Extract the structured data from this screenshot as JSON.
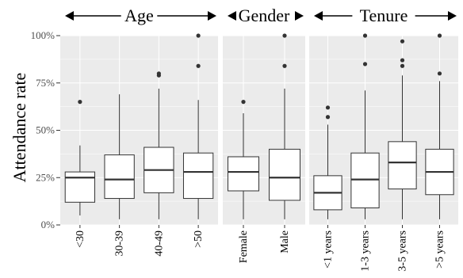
{
  "chart_data": {
    "type": "box",
    "title": "",
    "ylabel": "Attendance rate",
    "xlabel": "",
    "ylim": [
      0,
      1
    ],
    "yticks": [
      {
        "value": 0,
        "label": "0%"
      },
      {
        "value": 0.25,
        "label": "25%"
      },
      {
        "value": 0.5,
        "label": "50%"
      },
      {
        "value": 0.75,
        "label": "75%"
      },
      {
        "value": 1.0,
        "label": "100%"
      }
    ],
    "grid": true,
    "facets": [
      {
        "name": "Age",
        "categories": [
          {
            "label": "<30",
            "whisker_low": 0.05,
            "q1": 0.12,
            "median": 0.25,
            "q3": 0.28,
            "whisker_high": 0.42,
            "outliers": [
              0.65
            ]
          },
          {
            "label": "30-39",
            "whisker_low": 0.03,
            "q1": 0.14,
            "median": 0.24,
            "q3": 0.37,
            "whisker_high": 0.69,
            "outliers": []
          },
          {
            "label": "40-49",
            "whisker_low": 0.03,
            "q1": 0.17,
            "median": 0.29,
            "q3": 0.41,
            "whisker_high": 0.72,
            "outliers": [
              0.79,
              0.8
            ]
          },
          {
            "label": ">50",
            "whisker_low": 0.03,
            "q1": 0.14,
            "median": 0.28,
            "q3": 0.38,
            "whisker_high": 0.66,
            "outliers": [
              0.84,
              1.0
            ]
          }
        ]
      },
      {
        "name": "Gender",
        "categories": [
          {
            "label": "Female",
            "whisker_low": 0.03,
            "q1": 0.18,
            "median": 0.28,
            "q3": 0.36,
            "whisker_high": 0.59,
            "outliers": [
              0.65
            ]
          },
          {
            "label": "Male",
            "whisker_low": 0.03,
            "q1": 0.13,
            "median": 0.25,
            "q3": 0.4,
            "whisker_high": 0.72,
            "outliers": [
              0.84,
              1.0
            ]
          }
        ]
      },
      {
        "name": "Tenure",
        "categories": [
          {
            "label": "<1 years",
            "whisker_low": 0.03,
            "q1": 0.08,
            "median": 0.17,
            "q3": 0.26,
            "whisker_high": 0.53,
            "outliers": [
              0.57,
              0.62
            ]
          },
          {
            "label": "1-3 years",
            "whisker_low": 0.03,
            "q1": 0.09,
            "median": 0.24,
            "q3": 0.38,
            "whisker_high": 0.71,
            "outliers": [
              0.85,
              1.0
            ]
          },
          {
            "label": "3-5 years",
            "whisker_low": 0.03,
            "q1": 0.19,
            "median": 0.33,
            "q3": 0.44,
            "whisker_high": 0.79,
            "outliers": [
              0.84,
              0.87,
              0.97
            ]
          },
          {
            "label": ">5 years",
            "whisker_low": 0.03,
            "q1": 0.16,
            "median": 0.28,
            "q3": 0.4,
            "whisker_high": 0.76,
            "outliers": [
              0.8,
              1.0
            ]
          }
        ]
      }
    ],
    "colors": {
      "panel_bg": "#ebebeb",
      "grid": "#ffffff",
      "box_fill": "#ffffff",
      "stroke": "#333333",
      "outlier": "#333333",
      "text": "#000000",
      "tick_text": "#4d4d4d"
    }
  }
}
